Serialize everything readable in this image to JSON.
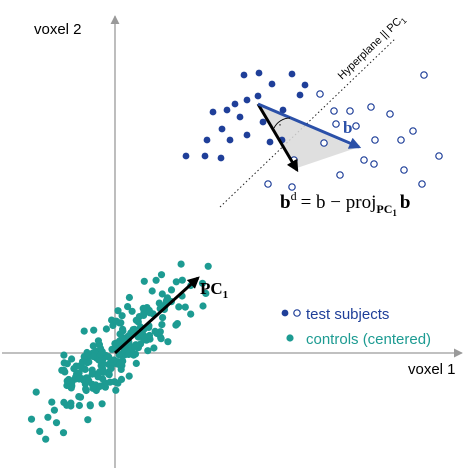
{
  "axes": {
    "y_label": "voxel 2",
    "x_label": "voxel 1"
  },
  "hyperplane_label": "Hyperplane || PC",
  "hyperplane_label_sub": "1",
  "pc_label": "PC",
  "pc_label_sub": "1",
  "b_label": "b",
  "formula": {
    "bd_base": "b",
    "bd_sup": "d",
    "rest": "= b − proj",
    "proj_sub": "PC",
    "proj_sub_sub": "1",
    "tail": "b"
  },
  "legend": {
    "test_label": "test subjects",
    "controls_label": "controls (centered)"
  },
  "colors": {
    "test_blue": "#1f3f99",
    "control_teal": "#1d9b92",
    "b_arrow": "#2b50a8",
    "black": "#000000",
    "gray_axis": "#9a9a9a",
    "shade": "#d9d9d9"
  },
  "markers": {
    "right_angle": "·"
  }
}
